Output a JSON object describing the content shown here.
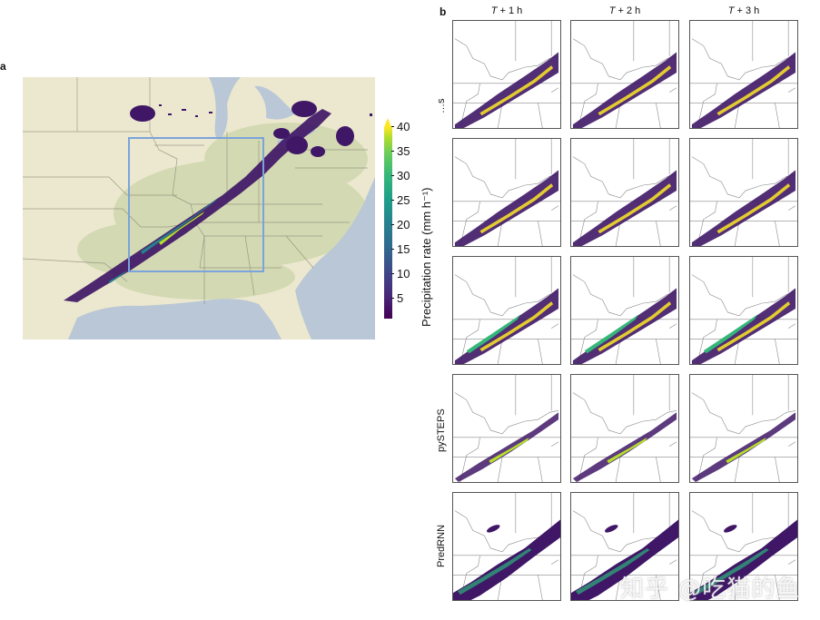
{
  "figure": {
    "panel_a": {
      "letter": "a",
      "description": "Map of eastern United States with radar precipitation and a blue box marking the region of interest",
      "colormap": "viridis",
      "box_color": "#7ba3dc",
      "land_color": "#ece8cf",
      "water_color": "#b9c7d6"
    },
    "colorbar": {
      "label": "Precipitation rate (mm h⁻¹)",
      "ticks": [
        "40",
        "35",
        "30",
        "25",
        "20",
        "15",
        "10",
        "5"
      ],
      "min": 0,
      "max": 40,
      "extend": "max",
      "colors": [
        "#440154",
        "#3e4a89",
        "#26828e",
        "#35b779",
        "#fde725"
      ]
    },
    "panel_b": {
      "letter": "b",
      "columns": [
        {
          "prefix": "T",
          "suffix": " + 1 h"
        },
        {
          "prefix": "T",
          "suffix": " + 2 h"
        },
        {
          "prefix": "T",
          "suffix": " + 3 h"
        }
      ],
      "rows": [
        {
          "label": "…s"
        },
        {
          "label": ""
        },
        {
          "label": ""
        },
        {
          "label": "pySTEPS"
        },
        {
          "label": "PredRNN"
        }
      ]
    },
    "watermark": "知乎 @吃猫的鱼"
  }
}
